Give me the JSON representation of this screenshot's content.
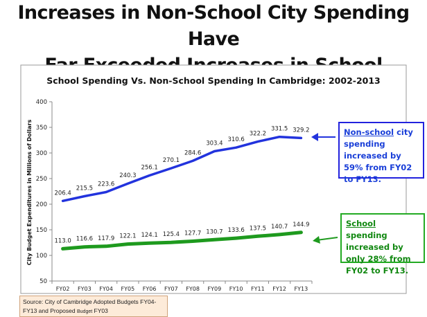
{
  "headline": {
    "line1": "Increases in Non-School City Spending Have",
    "line2": "Far Exceeded Increases in School Spending"
  },
  "chart_data": {
    "type": "line",
    "title": "School Spending Vs. Non-School Spending In Cambridge: 2002-2013",
    "xlabel": "",
    "ylabel": "City Budget Expenditures in Millions of Dollars",
    "categories": [
      "FY02",
      "FY03",
      "FY04",
      "FY05",
      "FY06",
      "FY07",
      "FY08",
      "FY09",
      "FY10",
      "FY11",
      "FY12",
      "FY13"
    ],
    "ylim": [
      50,
      400
    ],
    "yticks": [
      "50",
      "100",
      "150",
      "200",
      "250",
      "300",
      "350",
      "400"
    ],
    "grid": false,
    "series": [
      {
        "color": "#2233dd",
        "values": [
          206.4,
          215.5,
          223.6,
          240.3,
          256.1,
          270.1,
          284.6,
          303.4,
          310.6,
          322.2,
          331.5,
          329.2
        ],
        "labels": [
          "206.4",
          "215.5",
          "223.6",
          "240.3",
          "256.1",
          "270.1",
          "284.6",
          "303.4",
          "310.6",
          "322.2",
          "331.5",
          "329.2"
        ]
      },
      {
        "color": "#1e9a1e",
        "values": [
          113.0,
          116.6,
          117.9,
          122.1,
          124.1,
          125.4,
          127.7,
          130.7,
          133.6,
          137.5,
          140.7,
          144.9
        ],
        "labels": [
          "113.0",
          "116.6",
          "117.9",
          "122.1",
          "124.1",
          "125.4",
          "127.7",
          "130.7",
          "133.6",
          "137.5",
          "140.7",
          "144.9"
        ]
      }
    ]
  },
  "callouts": {
    "nonschool": {
      "underlined": "Non-school",
      "rest": " city spending increased by 59% from FY02 to FY13.",
      "color": "#1a3fd8"
    },
    "school": {
      "underlined": "School",
      "rest": " spending increased by only 28% from FY02 to FY13.",
      "color": "#118811"
    }
  },
  "source": {
    "text": "Source: City of Cambridge Adopted Budgets FY04-FY13 and Proposed ",
    "small": "Budget",
    "tail": " FY03"
  }
}
